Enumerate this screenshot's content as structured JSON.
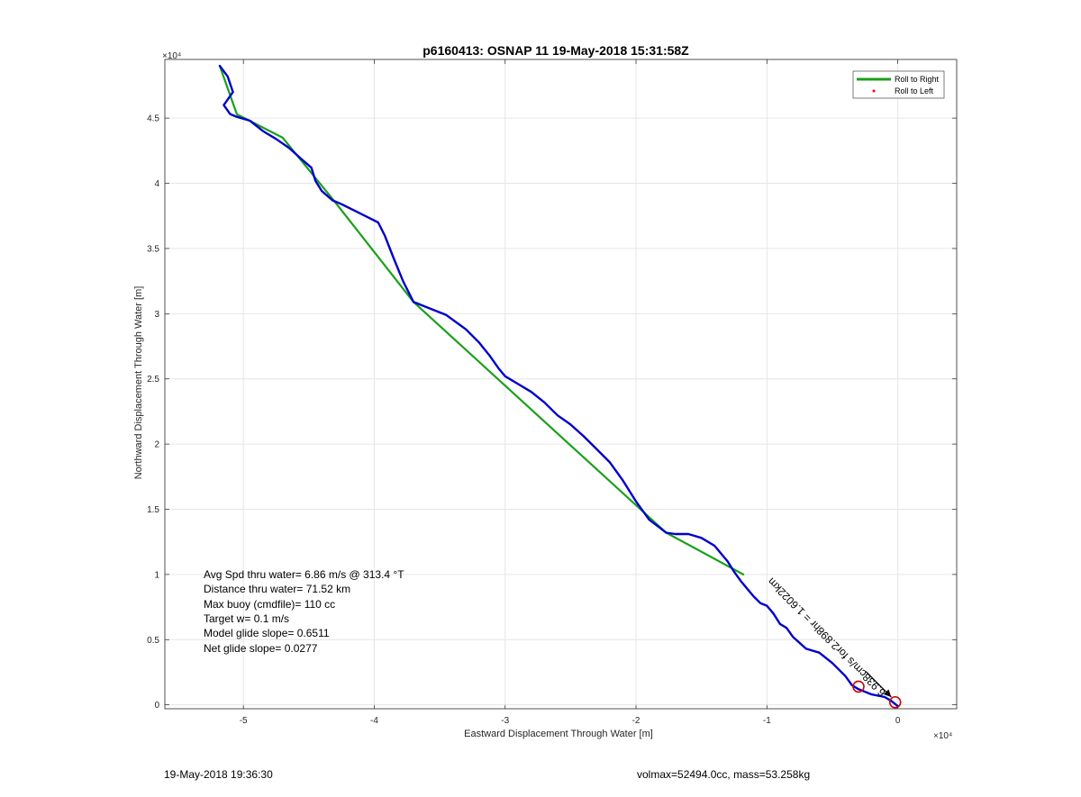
{
  "chart_data": {
    "type": "line",
    "title": "p6160413: OSNAP 11 19-May-2018 15:31:58Z",
    "xlabel": "Eastward Displacement Through Water [m]",
    "ylabel": "Northward Displacement Through Water [m]",
    "x_exponent": "×10⁴",
    "y_exponent": "×10⁴",
    "xlim": [
      -5.6,
      0.45
    ],
    "ylim": [
      -0.03,
      4.95
    ],
    "xticks": [
      -5,
      -4,
      -3,
      -2,
      -1,
      0
    ],
    "xtick_labels": [
      "-5",
      "-4",
      "-3",
      "-2",
      "-1",
      "0"
    ],
    "yticks": [
      0,
      0.5,
      1,
      1.5,
      2,
      2.5,
      3,
      3.5,
      4,
      4.5
    ],
    "ytick_labels": [
      "0",
      "0.5",
      "1",
      "1.5",
      "2",
      "2.5",
      "3",
      "3.5",
      "4",
      "4.5"
    ],
    "grid": true,
    "legend_position": "top-right",
    "legend": [
      {
        "label": "Roll to Right",
        "color": "#1aa01a",
        "marker": "line"
      },
      {
        "label": "Roll to Left",
        "color": "#ff0000",
        "marker": "dot"
      }
    ],
    "series": [
      {
        "name": "Roll to Right",
        "color": "#1aa01a",
        "x": [
          -5.18,
          -5.05,
          -4.7,
          -4.31,
          -3.7,
          -1.77,
          -1.18
        ],
        "y": [
          4.9,
          4.53,
          4.35,
          3.87,
          3.09,
          1.32,
          1.0
        ]
      },
      {
        "color": "#0000cc",
        "x": [
          -5.18,
          -5.12,
          -5.08,
          -5.15,
          -5.1,
          -5.05,
          -4.95,
          -4.85,
          -4.75,
          -4.65,
          -4.55,
          -4.48,
          -4.45,
          -4.4,
          -4.32,
          -4.25,
          -4.15,
          -4.05,
          -3.97,
          -3.92,
          -3.85,
          -3.78,
          -3.7,
          -3.6,
          -3.45,
          -3.3,
          -3.2,
          -3.12,
          -3.05,
          -3.0,
          -2.9,
          -2.8,
          -2.7,
          -2.6,
          -2.5,
          -2.4,
          -2.3,
          -2.2,
          -2.1,
          -2.0,
          -1.9,
          -1.82,
          -1.77,
          -1.7,
          -1.6,
          -1.5,
          -1.4,
          -1.3,
          -1.25,
          -1.2,
          -1.15,
          -1.1,
          -1.05,
          -1.0,
          -0.95,
          -0.9,
          -0.85,
          -0.8,
          -0.7,
          -0.6,
          -0.5,
          -0.4,
          -0.35,
          -0.3,
          -0.2,
          -0.1,
          -0.05,
          0.0
        ],
        "y": [
          4.9,
          4.82,
          4.7,
          4.6,
          4.53,
          4.51,
          4.48,
          4.4,
          4.34,
          4.27,
          4.18,
          4.12,
          4.02,
          3.94,
          3.87,
          3.84,
          3.79,
          3.74,
          3.7,
          3.6,
          3.42,
          3.25,
          3.09,
          3.05,
          2.99,
          2.88,
          2.78,
          2.68,
          2.58,
          2.52,
          2.46,
          2.4,
          2.32,
          2.22,
          2.15,
          2.06,
          1.96,
          1.86,
          1.72,
          1.56,
          1.42,
          1.36,
          1.32,
          1.31,
          1.31,
          1.28,
          1.22,
          1.1,
          1.02,
          0.95,
          0.89,
          0.83,
          0.78,
          0.76,
          0.7,
          0.62,
          0.59,
          0.52,
          0.43,
          0.4,
          0.32,
          0.22,
          0.15,
          0.12,
          0.08,
          0.06,
          0.03,
          -0.01
        ]
      }
    ],
    "markers": [
      {
        "x": -0.3,
        "y": 0.14,
        "color": "#cc0000",
        "shape": "circle"
      },
      {
        "x": -0.02,
        "y": 0.02,
        "color": "#cc0000",
        "shape": "circle"
      }
    ],
    "current_annotation": {
      "text": "6.938cm/s for2.898hr = 1.6022km",
      "x": -0.96,
      "y": 0.98,
      "x_end": -0.05,
      "y_end": 0.06
    },
    "text_block": [
      "Avg Spd thru water=  6.86 m/s @ 313.4 °T",
      "Distance thru water= 71.52 km",
      "Max buoy (cmdfile)= 110 cc",
      "Target w= 0.1 m/s",
      "Model glide slope= 0.6511",
      "Net glide slope= 0.0277"
    ]
  },
  "footer": {
    "timestamp": "19-May-2018 19:36:30",
    "mass_info": "volmax=52494.0cc, mass=53.258kg"
  }
}
